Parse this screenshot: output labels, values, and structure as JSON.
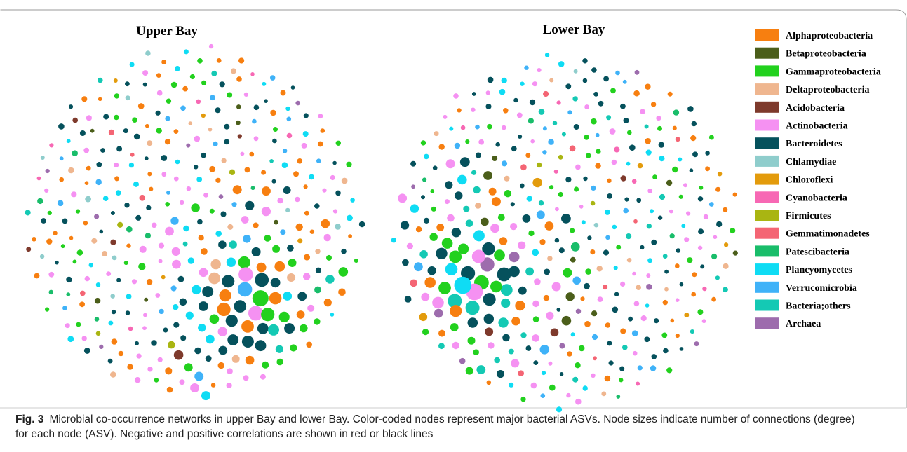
{
  "panels": [
    {
      "title": "Upper Bay"
    },
    {
      "title": "Lower Bay"
    }
  ],
  "legend": [
    {
      "label": "Alphaproteobacteria",
      "color": "#f77f10"
    },
    {
      "label": "Betaproteobacteria",
      "color": "#4b5e1a"
    },
    {
      "label": "Gammaproteobacteria",
      "color": "#22d11e"
    },
    {
      "label": "Deltaproteobacteria",
      "color": "#efb68f"
    },
    {
      "label": "Acidobacteria",
      "color": "#7e3a2c"
    },
    {
      "label": "Actinobacteria",
      "color": "#f591f2"
    },
    {
      "label": "Bacteroidetes",
      "color": "#05515c"
    },
    {
      "label": "Chlamydiae",
      "color": "#8fcdcc"
    },
    {
      "label": "Chloroflexi",
      "color": "#e39b0c"
    },
    {
      "label": "Cyanobacteria",
      "color": "#f768b4"
    },
    {
      "label": "Firmicutes",
      "color": "#a9b512"
    },
    {
      "label": "Gemmatimonadetes",
      "color": "#f46574"
    },
    {
      "label": "Patescibacteria",
      "color": "#19bd6a"
    },
    {
      "label": "Plancyomycetes",
      "color": "#0fdcf4"
    },
    {
      "label": "Verrucomicrobia",
      "color": "#3fb2f8"
    },
    {
      "label": "Bacteria;others",
      "color": "#14c9b4"
    },
    {
      "label": "Archaea",
      "color": "#9d6cad"
    }
  ],
  "caption": {
    "label": "Fig. 3",
    "text": "Microbial co-occurrence networks in upper Bay and lower Bay. Color-coded nodes represent major bacterial ASVs. Node sizes indicate number of connections (degree) for each node (ASV). Negative and positive correlations are shown in red or black lines"
  }
}
